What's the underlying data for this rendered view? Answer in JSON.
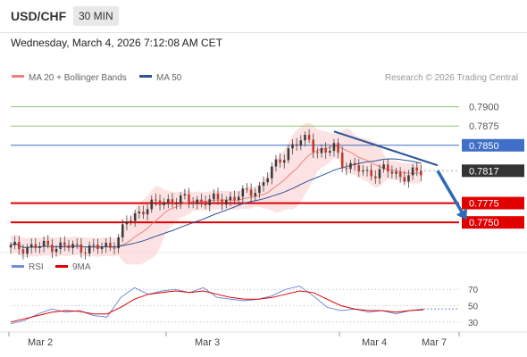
{
  "header": {
    "symbol": "USD/CHF",
    "timeframe": "30 MIN",
    "datetime": "Wednesday, March 4, 2026 7:12:08 AM CET"
  },
  "colors": {
    "ma20": "#f08080",
    "ma50": "#2e5597",
    "band": "#fbd3d3",
    "support": "#e00000",
    "resistance_green": "#8fc86e",
    "resistance_blue": "#3f6fc6",
    "current_price": "#333333",
    "rsi": "#6f8fd6",
    "rsi_ma": "#e00000",
    "arrow": "#2e6ab5",
    "candle_up": "#3b3b3b",
    "candle_down": "#c0392b"
  },
  "chart_data": [
    {
      "type": "candlestick",
      "title": "",
      "legend": [
        {
          "name": "MA 20 + Bollinger Bands",
          "color": "#f08080"
        },
        {
          "name": "MA 50",
          "color": "#2e5597"
        }
      ],
      "legend_position": "top-left",
      "credit": "Research © 2026 Trading Central",
      "x_tick_labels": [
        "Mar 2",
        "Mar 3",
        "Mar 4",
        "Mar 7"
      ],
      "ylim": [
        0.7712,
        0.7925
      ],
      "levels": [
        {
          "label": "0.7900",
          "value": 0.79,
          "style": "text",
          "color": "#8fc86e"
        },
        {
          "label": "0.7875",
          "value": 0.7875,
          "style": "text",
          "color": "#8fc86e"
        },
        {
          "label": "0.7850",
          "value": 0.785,
          "style": "box",
          "color": "#3f6fc6"
        },
        {
          "label": "0.7817",
          "value": 0.7817,
          "style": "box",
          "color": "#333333"
        },
        {
          "label": "0.7775",
          "value": 0.7775,
          "style": "box",
          "color": "#e00000"
        },
        {
          "label": "0.7750",
          "value": 0.775,
          "style": "box",
          "color": "#e00000"
        }
      ],
      "price_path": [
        [
          0,
          0.7717
        ],
        [
          5,
          0.7718
        ],
        [
          10,
          0.772
        ],
        [
          15,
          0.7718
        ],
        [
          20,
          0.7716
        ],
        [
          24,
          0.772
        ],
        [
          26,
          0.773
        ],
        [
          28,
          0.775
        ],
        [
          32,
          0.7768
        ],
        [
          36,
          0.7776
        ],
        [
          40,
          0.778
        ],
        [
          44,
          0.7778
        ],
        [
          48,
          0.7778
        ],
        [
          52,
          0.778
        ],
        [
          56,
          0.7786
        ],
        [
          60,
          0.7795
        ],
        [
          64,
          0.7825
        ],
        [
          67,
          0.7845
        ],
        [
          70,
          0.7855
        ],
        [
          72,
          0.7858
        ],
        [
          74,
          0.7842
        ],
        [
          76,
          0.784
        ],
        [
          78,
          0.7848
        ],
        [
          80,
          0.7828
        ],
        [
          82,
          0.7822
        ],
        [
          84,
          0.7818
        ],
        [
          86,
          0.7814
        ],
        [
          88,
          0.7815
        ],
        [
          90,
          0.7818
        ],
        [
          92,
          0.7815
        ],
        [
          94,
          0.781
        ],
        [
          96,
          0.7812
        ],
        [
          98,
          0.7814
        ],
        [
          99,
          0.7815
        ]
      ],
      "trendline": {
        "from": [
          78,
          0.7868
        ],
        "to": [
          103,
          0.7824
        ]
      },
      "forecast_arrow": {
        "from": [
          103,
          0.7817
        ],
        "to": [
          110,
          0.7753
        ]
      }
    },
    {
      "type": "line",
      "title": "",
      "legend": [
        {
          "name": "RSI",
          "color": "#6f8fd6"
        },
        {
          "name": "9MA",
          "color": "#e00000"
        }
      ],
      "yticks": [
        70,
        50,
        30
      ],
      "ylim": [
        20,
        80
      ],
      "series": [
        {
          "name": "RSI",
          "values": [
            28,
            32,
            40,
            46,
            42,
            44,
            38,
            36,
            60,
            72,
            64,
            68,
            70,
            66,
            72,
            60,
            58,
            56,
            58,
            62,
            70,
            74,
            62,
            48,
            44,
            46,
            42,
            44,
            40,
            44,
            46
          ]
        },
        {
          "name": "9MA",
          "values": [
            30,
            34,
            38,
            42,
            44,
            43,
            40,
            40,
            48,
            58,
            64,
            66,
            68,
            66,
            68,
            64,
            60,
            58,
            58,
            60,
            64,
            68,
            66,
            58,
            50,
            46,
            44,
            44,
            42,
            44,
            45
          ]
        }
      ]
    }
  ]
}
